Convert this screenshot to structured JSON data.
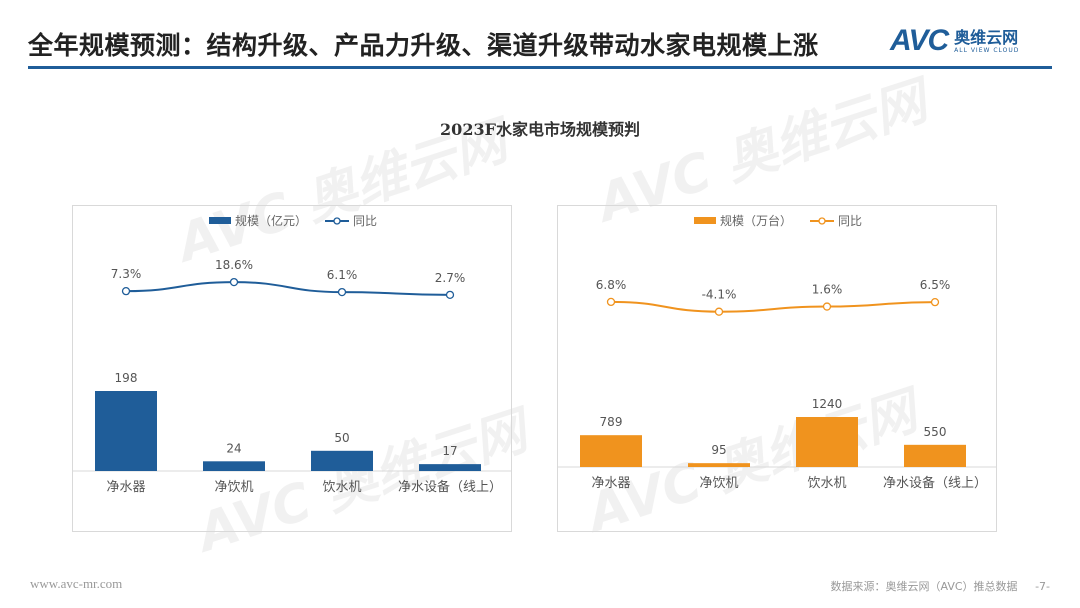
{
  "header": {
    "title": "全年规模预测：结构升级、产品力升级、渠道升级带动水家电规模上涨",
    "logo_mark": "AVC",
    "logo_cn": "奥维云网",
    "logo_en": "ALL VIEW CLOUD"
  },
  "chart_title": "2023F水家电市场规模预判",
  "colors": {
    "accent": "#1f5d99",
    "left_series": "#1f5d99",
    "right_series": "#f0931e"
  },
  "chart_data": [
    {
      "type": "bar+line",
      "categories": [
        "净水器",
        "净饮机",
        "饮水机",
        "净水设备（线上）"
      ],
      "series": [
        {
          "name": "规模（亿元）",
          "type": "bar",
          "values": [
            198,
            24,
            50,
            17
          ],
          "labels": [
            "198",
            "24",
            "50",
            "17"
          ]
        },
        {
          "name": "同比",
          "type": "line",
          "values": [
            7.3,
            18.6,
            6.1,
            2.7
          ],
          "labels": [
            "7.3%",
            "18.6%",
            "6.1%",
            "2.7%"
          ]
        }
      ],
      "legend": "top",
      "color": "#1f5d99"
    },
    {
      "type": "bar+line",
      "categories": [
        "净水器",
        "净饮机",
        "饮水机",
        "净水设备（线上）"
      ],
      "series": [
        {
          "name": "规模（万台）",
          "type": "bar",
          "values": [
            789,
            95,
            1240,
            550
          ],
          "labels": [
            "789",
            "95",
            "1240",
            "550"
          ]
        },
        {
          "name": "同比",
          "type": "line",
          "values": [
            6.8,
            -4.1,
            1.6,
            6.5
          ],
          "labels": [
            "6.8%",
            "-4.1%",
            "1.6%",
            "6.5%"
          ]
        }
      ],
      "legend": "top",
      "color": "#f0931e"
    }
  ],
  "footer": {
    "url": "www.avc-mr.com",
    "source": "数据来源：奥维云网（AVC）推总数据",
    "page": "-7-"
  }
}
